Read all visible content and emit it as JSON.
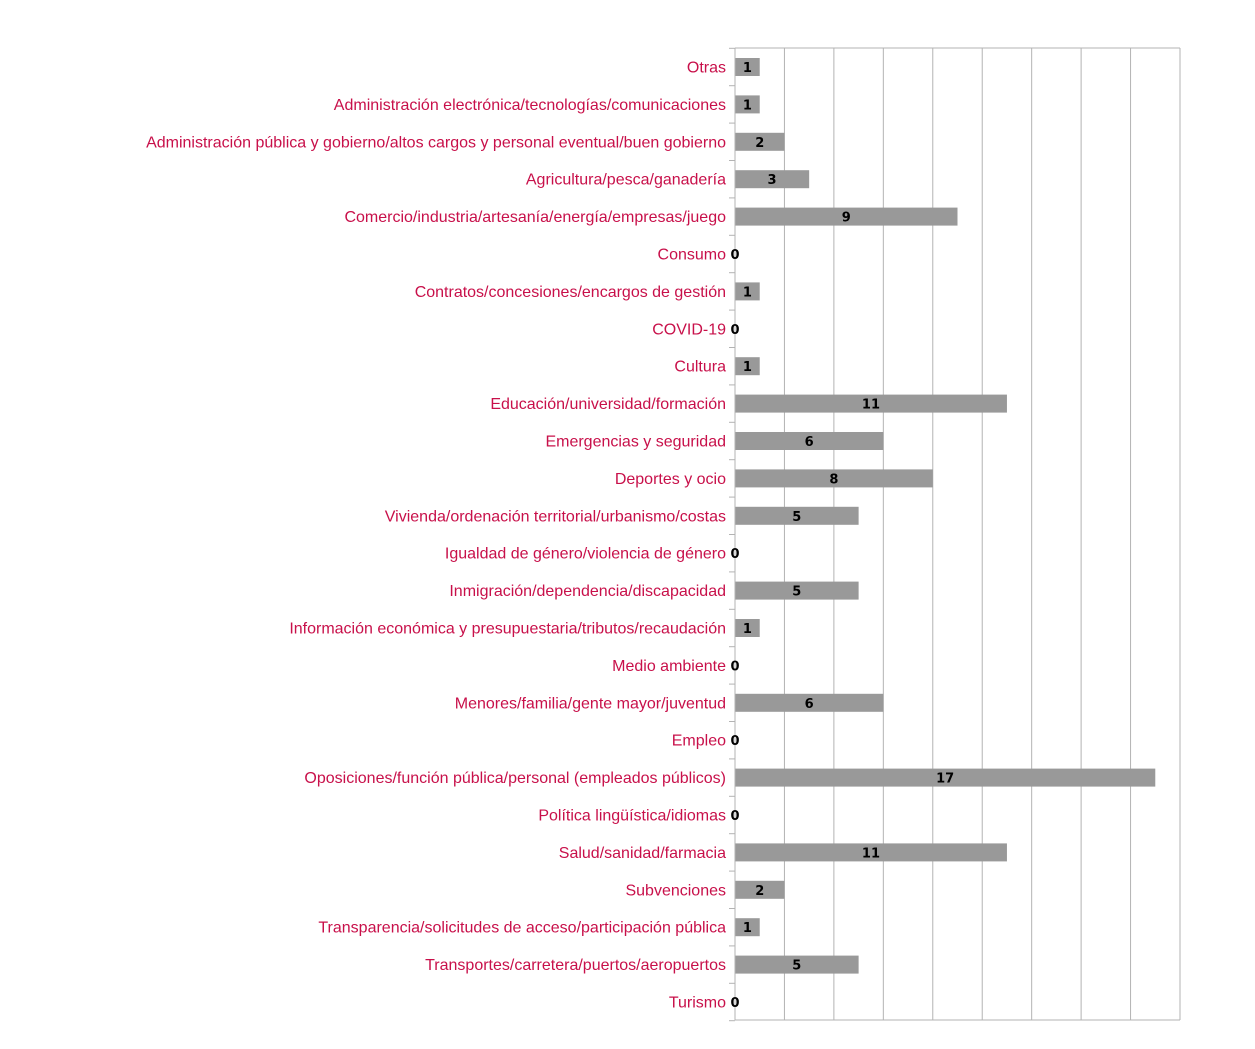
{
  "chart_data": {
    "type": "bar",
    "orientation": "horizontal",
    "categories": [
      "Otras",
      "Administración electrónica/tecnologías/comunicaciones",
      "Administración pública y gobierno/altos cargos y personal eventual/buen gobierno",
      "Agricultura/pesca/ganadería",
      "Comercio/industria/artesanía/energía/empresas/juego",
      "Consumo",
      "Contratos/concesiones/encargos de gestión",
      "COVID-19",
      "Cultura",
      "Educación/universidad/formación",
      "Emergencias y seguridad",
      "Deportes y ocio",
      "Vivienda/ordenación territorial/urbanismo/costas",
      "Igualdad de género/violencia de género",
      "Inmigración/dependencia/discapacidad",
      "Información económica y presupuestaria/tributos/recaudación",
      "Medio ambiente",
      "Menores/familia/gente mayor/juventud",
      "Empleo",
      "Oposiciones/función pública/personal (empleados públicos)",
      "Política lingüística/idiomas",
      "Salud/sanidad/farmacia",
      "Subvenciones",
      "Transparencia/solicitudes de acceso/participación pública",
      "Transportes/carretera/puertos/aeropuertos",
      "Turismo"
    ],
    "values": [
      1,
      1,
      2,
      3,
      9,
      0,
      1,
      0,
      1,
      11,
      6,
      8,
      5,
      0,
      5,
      1,
      0,
      6,
      0,
      17,
      0,
      11,
      2,
      1,
      5,
      0
    ],
    "xlim": [
      0,
      18
    ],
    "gridlines_step": 2,
    "grid": true,
    "data_labels": true,
    "legend": "none",
    "colors": {
      "bar": "#999999",
      "category_label": "#c8104a",
      "value_label": "#000000",
      "grid": "#b3b3b3",
      "axis": "#b3b3b3"
    }
  }
}
